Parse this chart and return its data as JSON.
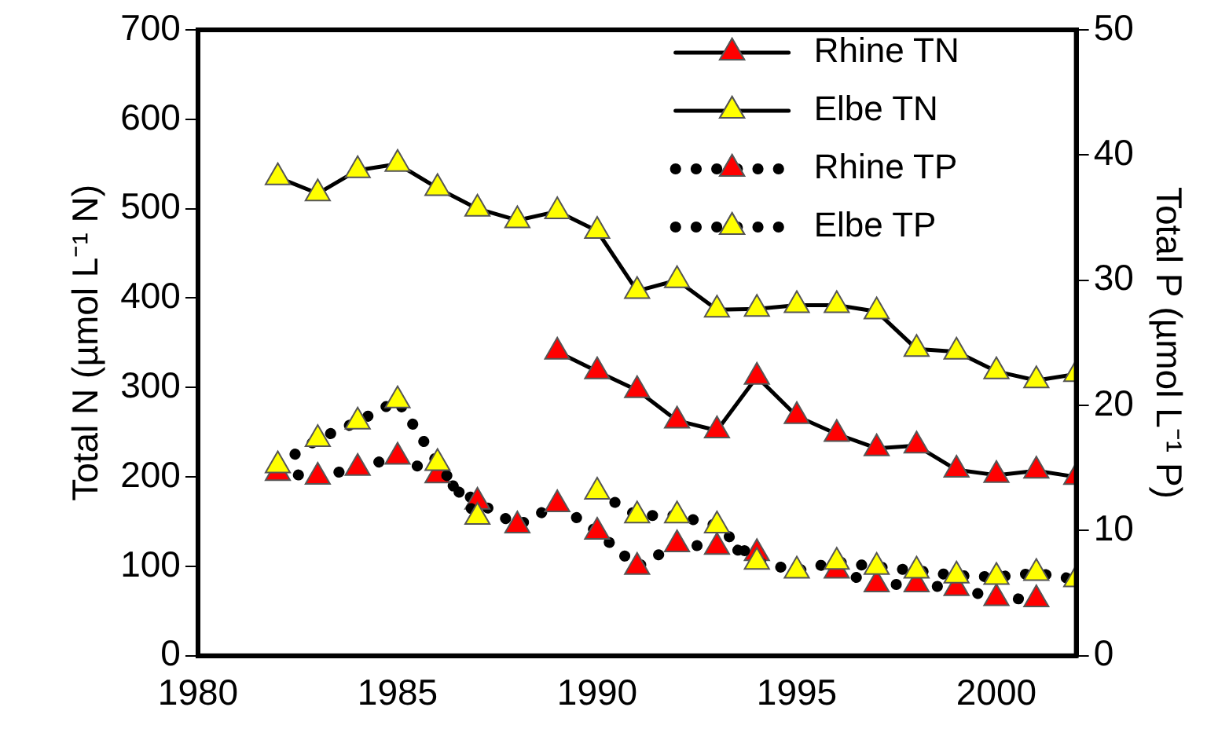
{
  "chart_data": {
    "type": "line",
    "xlabel": null,
    "ylabel": "Total N (µmol L⁻¹ N)",
    "y2label": "Total P (µmol L⁻¹ P)",
    "x": [
      1982,
      1983,
      1984,
      1985,
      1986,
      1987,
      1988,
      1989,
      1990,
      1991,
      1992,
      1993,
      1994,
      1995,
      1996,
      1997,
      1998,
      1999,
      2000,
      2001,
      2002
    ],
    "xlim": [
      1980,
      2002
    ],
    "xticks": [
      1980,
      1985,
      1990,
      1995,
      2000
    ],
    "ylim": [
      0,
      700
    ],
    "yticks": [
      0,
      100,
      200,
      300,
      400,
      500,
      600,
      700
    ],
    "y2lim": [
      0,
      50
    ],
    "y2ticks": [
      0,
      10,
      20,
      30,
      40,
      50
    ],
    "grid": false,
    "legend": "top right",
    "marker": "triangle",
    "series": [
      {
        "name": "Rhine TN",
        "color": "#ff0000",
        "line_style": "solid",
        "values": [
          null,
          null,
          null,
          null,
          null,
          null,
          null,
          340,
          318,
          297,
          263,
          252,
          312,
          268,
          248,
          232,
          235,
          208,
          202,
          207,
          200
        ]
      },
      {
        "name": "Elbe TN",
        "color": "#ffff00",
        "line_style": "solid",
        "values": [
          535,
          517,
          543,
          550,
          523,
          500,
          487,
          497,
          475,
          408,
          420,
          387,
          388,
          392,
          392,
          385,
          343,
          340,
          318,
          308,
          315
        ]
      },
      {
        "name": "Rhine TP",
        "color": "#ff0000",
        "line_style": "dotted",
        "axis": "y2",
        "values": [
          14.6,
          14.3,
          15.0,
          15.9,
          14.4,
          12.3,
          10.4,
          12.1,
          9.9,
          7.1,
          8.9,
          8.7,
          8.2,
          null,
          6.8,
          5.7,
          5.7,
          5.4,
          4.6,
          4.5,
          null
        ]
      },
      {
        "name": "Elbe TP",
        "color": "#ffff00",
        "line_style": "dotted",
        "axis": "y2",
        "values": [
          15.2,
          17.3,
          18.7,
          20.4,
          15.4,
          11.1,
          null,
          null,
          13.1,
          11.2,
          11.2,
          10.4,
          7.5,
          6.8,
          7.5,
          7.1,
          6.8,
          6.4,
          6.3,
          6.6,
          6.1
        ]
      }
    ]
  }
}
